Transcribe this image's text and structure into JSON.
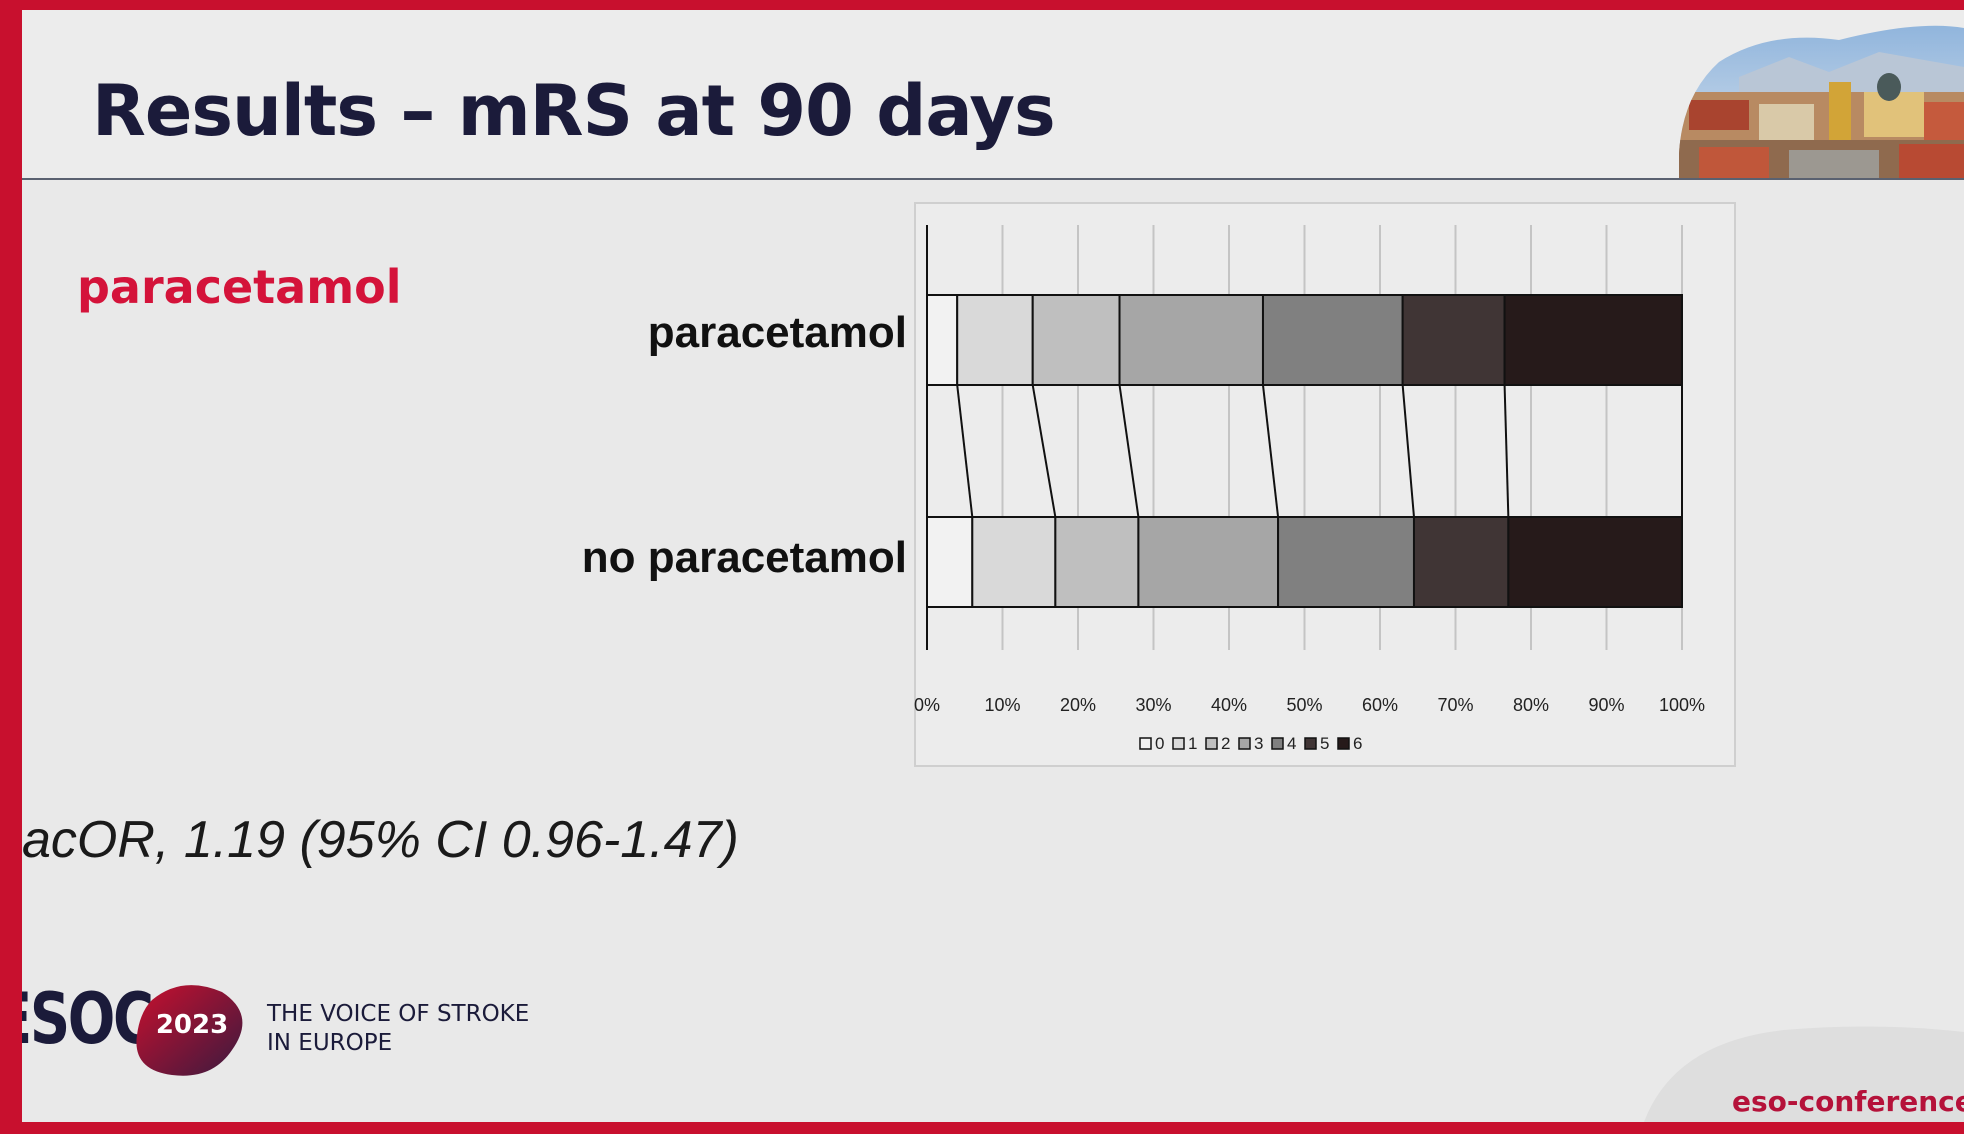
{
  "slide": {
    "title": "Results – mRS at 90 days",
    "section_label": "paracetamol",
    "stat": "acOR, 1.19 (95% CI 0.96-1.47)",
    "logo": {
      "text": "ESOC",
      "year": "2023",
      "tagline_1": "THE VOICE OF STROKE",
      "tagline_2": "IN EUROPE"
    },
    "footer_url": "eso-conference",
    "colors": {
      "brand_red": "#c8102e",
      "title_navy": "#1b1b3a",
      "accent_pink": "#d4133a"
    }
  },
  "chart_data": {
    "type": "bar",
    "orientation": "horizontal",
    "stacked": true,
    "normalized": true,
    "categories": [
      "paracetamol",
      "no paracetamol"
    ],
    "series": [
      {
        "name": "0",
        "values": [
          4,
          6
        ],
        "color": "#f2f2f2"
      },
      {
        "name": "1",
        "values": [
          10,
          11
        ],
        "color": "#d9d9d9"
      },
      {
        "name": "2",
        "values": [
          11.5,
          11
        ],
        "color": "#bfbfbf"
      },
      {
        "name": "3",
        "values": [
          19,
          18.5
        ],
        "color": "#a6a6a6"
      },
      {
        "name": "4",
        "values": [
          18.5,
          18
        ],
        "color": "#808080"
      },
      {
        "name": "5",
        "values": [
          13.5,
          12.5
        ],
        "color": "#403535"
      },
      {
        "name": "6",
        "values": [
          23.5,
          23
        ],
        "color": "#261a1a"
      }
    ],
    "x_ticks": [
      "0%",
      "10%",
      "20%",
      "30%",
      "40%",
      "50%",
      "60%",
      "70%",
      "80%",
      "90%",
      "100%"
    ],
    "xlim": [
      0,
      100
    ],
    "grid": true,
    "legend": {
      "position": "bottom",
      "labels": [
        "0",
        "1",
        "2",
        "3",
        "4",
        "5",
        "6"
      ]
    },
    "title": "",
    "xlabel": "",
    "ylabel": ""
  }
}
